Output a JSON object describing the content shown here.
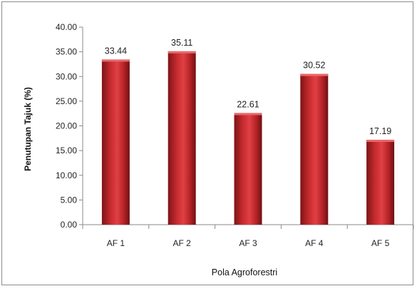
{
  "chart_data": {
    "type": "bar",
    "categories": [
      "AF 1",
      "AF 2",
      "AF 3",
      "AF 4",
      "AF 5"
    ],
    "values": [
      33.44,
      35.11,
      22.61,
      30.52,
      17.19
    ],
    "data_labels": [
      "33.44",
      "35.11",
      "22.61",
      "30.52",
      "17.19"
    ],
    "xlabel": "Pola Agroforestri",
    "ylabel": "Penutupan Tajuk (%)",
    "ylim": [
      0,
      40
    ],
    "yticks": [
      "0.00",
      "5.00",
      "10.00",
      "15.00",
      "20.00",
      "25.00",
      "30.00",
      "35.00",
      "40.00"
    ],
    "grid": false,
    "legend": "none",
    "bar_color": "#c0282d"
  }
}
